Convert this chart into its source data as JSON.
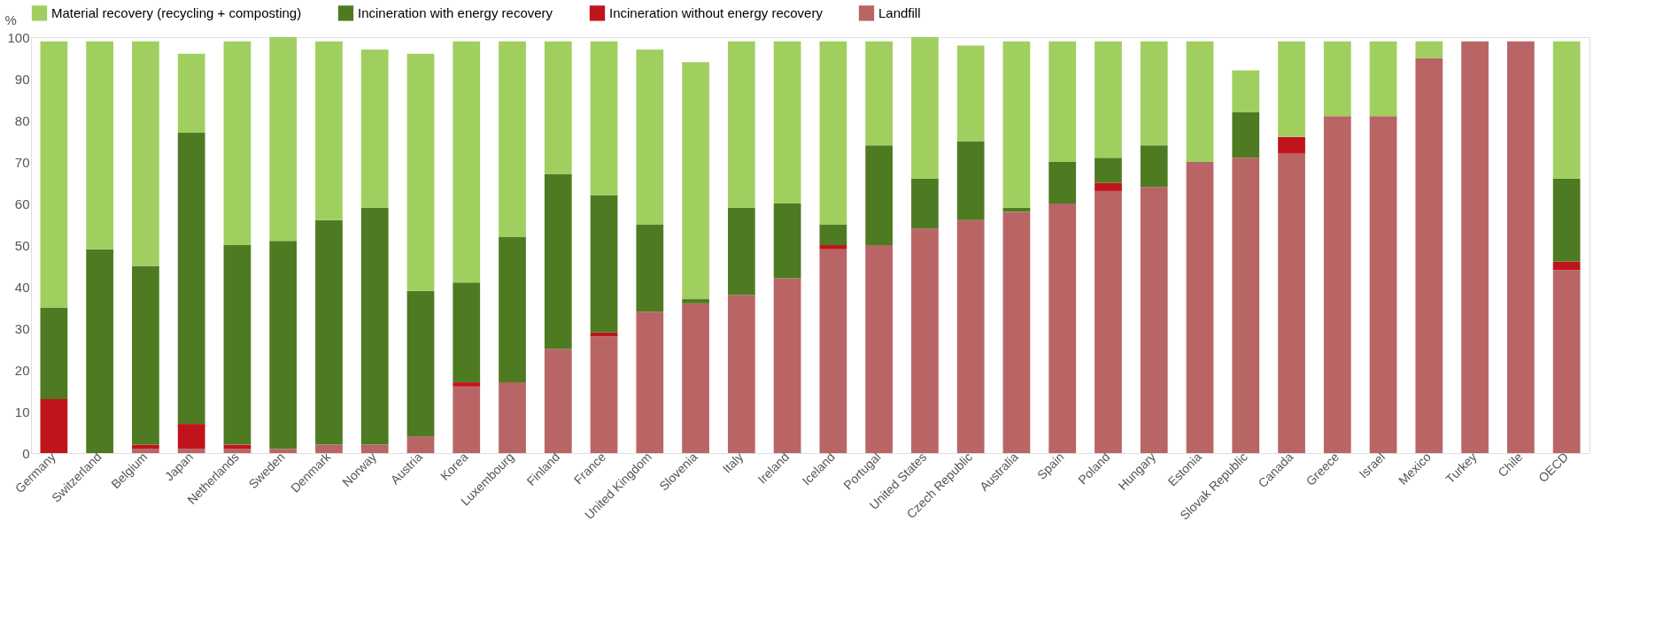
{
  "chart_data": {
    "type": "bar",
    "stacked": true,
    "ylabel": "%",
    "ylim": [
      0,
      100
    ],
    "yticks": [
      0,
      10,
      20,
      30,
      40,
      50,
      60,
      70,
      80,
      90,
      100
    ],
    "grid": false,
    "legend": "top",
    "categories": [
      "Germany",
      "Switzerland",
      "Belgium",
      "Japan",
      "Netherlands",
      "Sweden",
      "Denmark",
      "Norway",
      "Austria",
      "Korea",
      "Luxembourg",
      "Finland",
      "France",
      "United Kingdom",
      "Slovenia",
      "Italy",
      "Ireland",
      "Iceland",
      "Portugal",
      "United States",
      "Czech Republic",
      "Australia",
      "Spain",
      "Poland",
      "Hungary",
      "Estonia",
      "Slovak Republic",
      "Canada",
      "Greece",
      "Israel",
      "Mexico",
      "Turkey",
      "Chile",
      "OECD"
    ],
    "series": [
      {
        "name": "Landfill",
        "color": "#b96565",
        "values": [
          0,
          0,
          1,
          1,
          1,
          1,
          2,
          2,
          4,
          16,
          17,
          25,
          28,
          34,
          36,
          38,
          42,
          49,
          50,
          54,
          56,
          58,
          60,
          63,
          64,
          70,
          71,
          72,
          81,
          81,
          95,
          99,
          99,
          44
        ]
      },
      {
        "name": "Incineration without energy recovery",
        "color": "#c0141c",
        "values": [
          13,
          0,
          1,
          6,
          1,
          0,
          0,
          0,
          0,
          1,
          0,
          0,
          1,
          0,
          0,
          0,
          0,
          1,
          0,
          0,
          0,
          0,
          0,
          2,
          0,
          0,
          0,
          4,
          0,
          0,
          0,
          0,
          0,
          2
        ]
      },
      {
        "name": "Incineration with energy recovery",
        "color": "#4e7b22",
        "values": [
          22,
          49,
          43,
          70,
          48,
          50,
          54,
          57,
          35,
          24,
          35,
          42,
          33,
          21,
          1,
          21,
          18,
          5,
          24,
          12,
          19,
          1,
          10,
          6,
          10,
          0,
          11,
          0,
          0,
          0,
          0,
          0,
          0,
          20
        ]
      },
      {
        "name": "Material recovery (recycling + composting)",
        "color": "#a0cf60",
        "values": [
          64,
          50,
          54,
          19,
          49,
          49,
          43,
          38,
          57,
          58,
          47,
          32,
          37,
          42,
          57,
          40,
          39,
          44,
          25,
          34,
          23,
          40,
          29,
          28,
          25,
          29,
          10,
          23,
          18,
          18,
          4,
          0,
          0,
          33
        ]
      }
    ]
  }
}
